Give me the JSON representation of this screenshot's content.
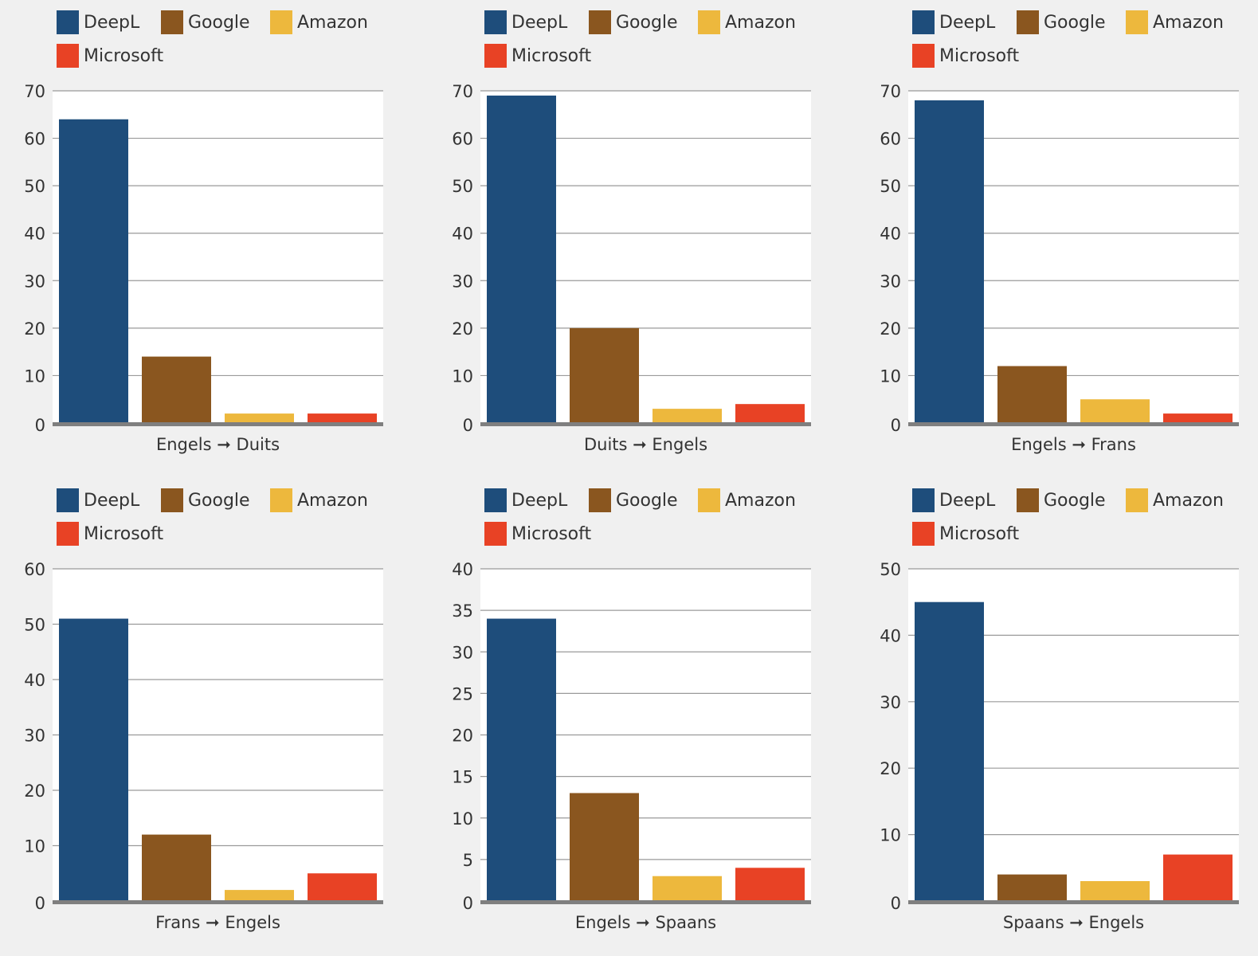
{
  "colors": {
    "DeepL": "#1e4d7b",
    "Google": "#8a561f",
    "Amazon": "#edb83d",
    "Microsoft": "#e84225",
    "background": "#f0f0f0",
    "plot_background": "#ffffff",
    "gridline": "#9a9a9a",
    "baseline": "#7f7f7f"
  },
  "chart_data": [
    {
      "type": "bar",
      "categories": [
        "DeepL",
        "Google",
        "Amazon",
        "Microsoft"
      ],
      "values": [
        64,
        14,
        2,
        2
      ],
      "xlabel": "Engels ➞ Duits",
      "ylim": [
        0,
        70
      ],
      "yticks": [
        0,
        10,
        20,
        30,
        40,
        50,
        60,
        70
      ],
      "grid": true,
      "legend_position": "top-left",
      "legend": [
        "DeepL",
        "Google",
        "Amazon",
        "Microsoft"
      ]
    },
    {
      "type": "bar",
      "categories": [
        "DeepL",
        "Google",
        "Amazon",
        "Microsoft"
      ],
      "values": [
        69,
        20,
        3,
        4
      ],
      "xlabel": "Duits ➞ Engels",
      "ylim": [
        0,
        70
      ],
      "yticks": [
        0,
        10,
        20,
        30,
        40,
        50,
        60,
        70
      ],
      "grid": true,
      "legend_position": "top-left",
      "legend": [
        "DeepL",
        "Google",
        "Amazon",
        "Microsoft"
      ]
    },
    {
      "type": "bar",
      "categories": [
        "DeepL",
        "Google",
        "Amazon",
        "Microsoft"
      ],
      "values": [
        68,
        12,
        5,
        2
      ],
      "xlabel": "Engels ➞ Frans",
      "ylim": [
        0,
        70
      ],
      "yticks": [
        0,
        10,
        20,
        30,
        40,
        50,
        60,
        70
      ],
      "grid": true,
      "legend_position": "top-left",
      "legend": [
        "DeepL",
        "Google",
        "Amazon",
        "Microsoft"
      ]
    },
    {
      "type": "bar",
      "categories": [
        "DeepL",
        "Google",
        "Amazon",
        "Microsoft"
      ],
      "values": [
        51,
        12,
        2,
        5
      ],
      "xlabel": "Frans ➞ Engels",
      "ylim": [
        0,
        60
      ],
      "yticks": [
        0,
        10,
        20,
        30,
        40,
        50,
        60
      ],
      "grid": true,
      "legend_position": "top-left",
      "legend": [
        "DeepL",
        "Google",
        "Amazon",
        "Microsoft"
      ]
    },
    {
      "type": "bar",
      "categories": [
        "DeepL",
        "Google",
        "Amazon",
        "Microsoft"
      ],
      "values": [
        34,
        13,
        3,
        4
      ],
      "xlabel": "Engels ➞ Spaans",
      "ylim": [
        0,
        40
      ],
      "yticks": [
        0,
        5,
        10,
        15,
        20,
        25,
        30,
        35,
        40
      ],
      "grid": true,
      "legend_position": "top-left",
      "legend": [
        "DeepL",
        "Google",
        "Amazon",
        "Microsoft"
      ]
    },
    {
      "type": "bar",
      "categories": [
        "DeepL",
        "Google",
        "Amazon",
        "Microsoft"
      ],
      "values": [
        45,
        4,
        3,
        7
      ],
      "xlabel": "Spaans ➞ Engels",
      "ylim": [
        0,
        50
      ],
      "yticks": [
        0,
        10,
        20,
        30,
        40,
        50
      ],
      "grid": true,
      "legend_position": "top-left",
      "legend": [
        "DeepL",
        "Google",
        "Amazon",
        "Microsoft"
      ]
    }
  ]
}
